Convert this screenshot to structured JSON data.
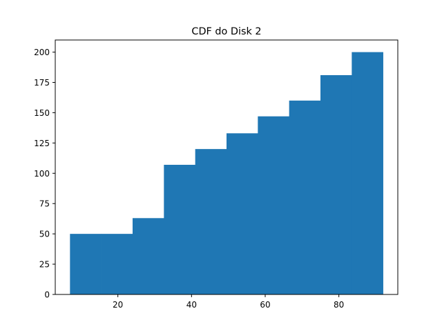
{
  "chart_data": {
    "type": "bar",
    "title": "CDF do Disk 2",
    "xlabel": "",
    "ylabel": "",
    "xlim": [
      3,
      96
    ],
    "ylim": [
      0,
      210
    ],
    "bin_edges": [
      7,
      15.5,
      24,
      32.5,
      41,
      49.5,
      58,
      66.5,
      75,
      83.5,
      92
    ],
    "values": [
      50,
      50,
      63,
      107,
      120,
      133,
      147,
      160,
      181,
      200
    ],
    "x_ticks": [
      20,
      40,
      60,
      80
    ],
    "x_tick_labels": [
      "20",
      "40",
      "60",
      "80"
    ],
    "y_ticks": [
      0,
      25,
      50,
      75,
      100,
      125,
      150,
      175,
      200
    ],
    "y_tick_labels": [
      "0",
      "25",
      "50",
      "75",
      "100",
      "125",
      "150",
      "175",
      "200"
    ],
    "grid": false,
    "colors": {
      "bar": "#1f77b4"
    }
  }
}
